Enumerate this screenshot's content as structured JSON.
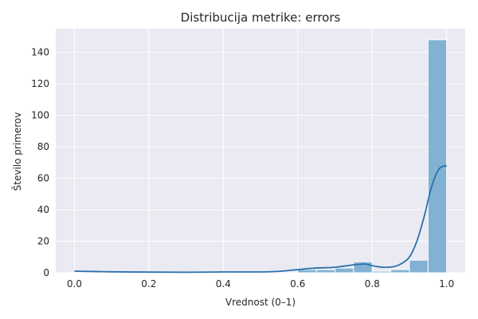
{
  "chart_data": {
    "type": "bar",
    "title": "Distribucija metrike: errors",
    "xlabel": "Vrednost (0–1)",
    "ylabel": "Število primerov",
    "xlim": [
      -0.05,
      1.05
    ],
    "ylim": [
      0,
      155
    ],
    "grid": true,
    "x_ticks": [
      0.0,
      0.2,
      0.4,
      0.6,
      0.8,
      1.0
    ],
    "x_tick_labels": [
      "0.0",
      "0.2",
      "0.4",
      "0.6",
      "0.8",
      "1.0"
    ],
    "y_ticks": [
      0,
      20,
      40,
      60,
      80,
      100,
      120,
      140
    ],
    "y_tick_labels": [
      "0",
      "20",
      "40",
      "60",
      "80",
      "100",
      "120",
      "140"
    ],
    "bins": [
      {
        "x0": 0.6,
        "x1": 0.65,
        "count": 2
      },
      {
        "x0": 0.65,
        "x1": 0.7,
        "count": 2
      },
      {
        "x0": 0.7,
        "x1": 0.75,
        "count": 3
      },
      {
        "x0": 0.75,
        "x1": 0.8,
        "count": 7
      },
      {
        "x0": 0.8,
        "x1": 0.85,
        "count": 1
      },
      {
        "x0": 0.85,
        "x1": 0.9,
        "count": 2
      },
      {
        "x0": 0.9,
        "x1": 0.95,
        "count": 8
      },
      {
        "x0": 0.95,
        "x1": 1.0,
        "count": 148
      }
    ],
    "kde": {
      "x": [
        0.0,
        0.1,
        0.2,
        0.3,
        0.4,
        0.5,
        0.55,
        0.6,
        0.65,
        0.7,
        0.75,
        0.78,
        0.8,
        0.83,
        0.86,
        0.88,
        0.9,
        0.92,
        0.94,
        0.96,
        0.98,
        1.0
      ],
      "y": [
        1,
        0.6,
        0.4,
        0.3,
        0.5,
        0.5,
        0.9,
        2,
        3,
        3.5,
        5,
        5.5,
        4.5,
        3.5,
        4,
        6,
        10,
        20,
        36,
        55,
        66,
        68
      ]
    },
    "colors": {
      "bar": "#82b1d3",
      "bar_edge": "#ffffff",
      "kde_line": "#2a71ad",
      "plot_background": "#eaeaf2",
      "grid": "#ffffff"
    }
  }
}
